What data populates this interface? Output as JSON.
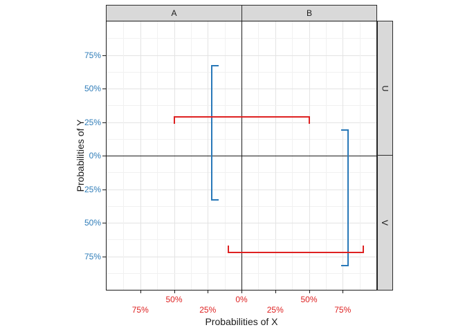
{
  "chart_data": {
    "type": "errorbar",
    "title": "",
    "description": "Four-quadrant faceted plot (columns A/B, rows U/V) with one vertical blue probability interval per column facet and one horizontal red probability interval per row facet. Coordinates are signed percentages: negative x = facet A side, positive x = facet B side, positive y = facet U (up), negative y = facet V (down).",
    "xlabel": "Probabilities of X",
    "ylabel": "Probabilities of Y",
    "facets": {
      "col_labels": [
        "A",
        "B"
      ],
      "row_labels": [
        "U",
        "V"
      ]
    },
    "axes": {
      "x": {
        "range": [
          -100,
          100
        ],
        "label_color": "#de2121",
        "ticks": [
          {
            "value": -75,
            "label": "75%",
            "row": 2
          },
          {
            "value": -50,
            "label": "50%",
            "row": 1
          },
          {
            "value": -25,
            "label": "25%",
            "row": 2
          },
          {
            "value": 0,
            "label": "0%",
            "row": 1
          },
          {
            "value": 25,
            "label": "25%",
            "row": 2
          },
          {
            "value": 50,
            "label": "50%",
            "row": 1
          },
          {
            "value": 75,
            "label": "75%",
            "row": 2
          }
        ]
      },
      "y": {
        "range": [
          -100,
          100
        ],
        "label_color": "#2e7cb8",
        "ticks": [
          {
            "value": 75,
            "label": "75%"
          },
          {
            "value": 50,
            "label": "50%"
          },
          {
            "value": 25,
            "label": "25%"
          },
          {
            "value": 0,
            "label": "0%"
          },
          {
            "value": -25,
            "label": "25%"
          },
          {
            "value": -50,
            "label": "50%"
          },
          {
            "value": -75,
            "label": "75%"
          }
        ]
      }
    },
    "grid": {
      "major_step": 25,
      "minor_step": 12.5,
      "major_color": "#e3e3e3",
      "minor_color": "#f1f1f1"
    },
    "series": [
      {
        "name": "y-interval-facet-A",
        "orientation": "vertical",
        "color": "#2878b8",
        "x": -22,
        "y_min": -33,
        "y_max": 67,
        "caps": "right"
      },
      {
        "name": "y-interval-facet-B",
        "orientation": "vertical",
        "color": "#2878b8",
        "x": 79,
        "y_min": -82,
        "y_max": 19,
        "caps": "left"
      },
      {
        "name": "x-interval-facet-U",
        "orientation": "horizontal",
        "color": "#de2121",
        "y": 29,
        "x_min": -50,
        "x_max": 50,
        "caps": "down"
      },
      {
        "name": "x-interval-facet-V",
        "orientation": "horizontal",
        "color": "#de2121",
        "y": -72,
        "x_min": -10,
        "x_max": 90,
        "caps": "up"
      }
    ],
    "colors": {
      "strip_background": "#d9d9d9",
      "panel_border": "#1a1a1a",
      "blue_series": "#2878b8",
      "red_series": "#de2121"
    }
  }
}
